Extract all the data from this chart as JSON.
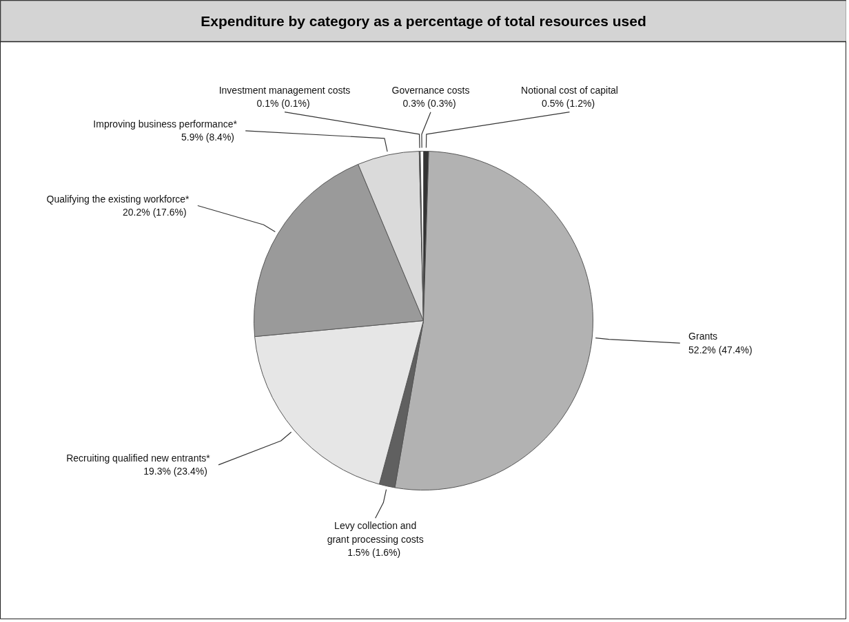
{
  "chart_data": {
    "type": "pie",
    "title": "Expenditure by category as a percentage of total resources used",
    "categories": [
      "Notional cost of capital",
      "Grants",
      "Levy collection and\ngrant processing costs",
      "Recruiting qualified new entrants*",
      "Qualifying the existing workforce*",
      "Improving business performance*",
      "Investment management costs",
      "Governance costs"
    ],
    "values": [
      0.5,
      52.2,
      1.5,
      19.3,
      20.2,
      5.9,
      0.1,
      0.3
    ],
    "value_labels": [
      "0.5%  (1.2%)",
      "52.2%  (47.4%)",
      "1.5%  (1.6%)",
      "19.3%  (23.4%)",
      "20.2%  (17.6%)",
      "5.9%  (8.4%)",
      "0.1%  (0.1%)",
      "0.3%  (0.3%)"
    ],
    "colors": [
      "#333333",
      "#b2b2b2",
      "#606060",
      "#e6e6e6",
      "#9a9a9a",
      "#dadada",
      "#444444",
      "#ffffff"
    ]
  }
}
